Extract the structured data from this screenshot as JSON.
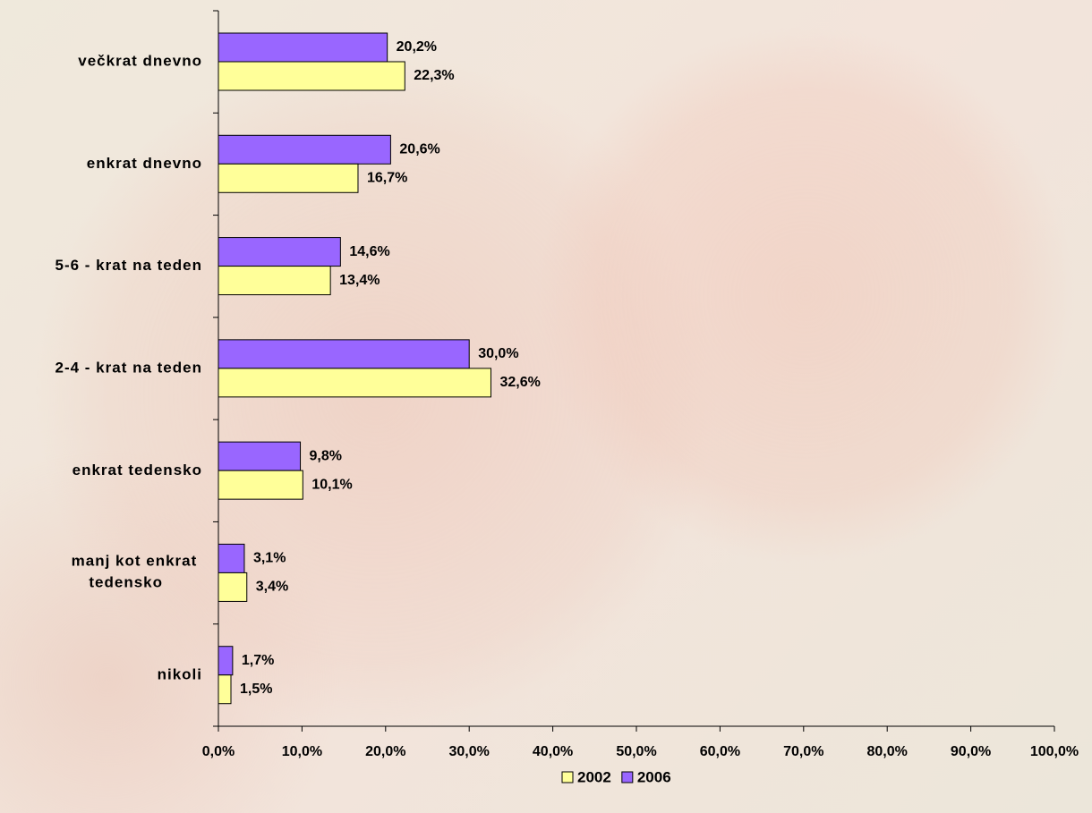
{
  "chart_data": {
    "type": "hbar",
    "categories": [
      "večkrat dnevno",
      "enkrat dnevno",
      "5-6 - krat na teden",
      "2-4 - krat na teden",
      "enkrat tedensko",
      "manj kot enkrat tedensko",
      "nikoli"
    ],
    "series": [
      {
        "name": "2002",
        "color": "#ffff99",
        "values": [
          22.3,
          16.7,
          13.4,
          32.6,
          10.1,
          3.4,
          1.5
        ],
        "value_labels": [
          "22,3%",
          "16,7%",
          "13,4%",
          "32,6%",
          "10,1%",
          "3,4%",
          "1,5%"
        ]
      },
      {
        "name": "2006",
        "color": "#9966ff",
        "values": [
          20.2,
          20.6,
          14.6,
          30.0,
          9.8,
          3.1,
          1.7
        ],
        "value_labels": [
          "20,2%",
          "20,6%",
          "14,6%",
          "30,0%",
          "9,8%",
          "3,1%",
          "1,7%"
        ]
      }
    ],
    "xlim": [
      0,
      100
    ],
    "xticks": [
      {
        "value": 0,
        "label": "0,0%"
      },
      {
        "value": 10,
        "label": "10,0%"
      },
      {
        "value": 20,
        "label": "20,0%"
      },
      {
        "value": 30,
        "label": "30,0%"
      },
      {
        "value": 40,
        "label": "40,0%"
      },
      {
        "value": 50,
        "label": "50,0%"
      },
      {
        "value": 60,
        "label": "60,0%"
      },
      {
        "value": 70,
        "label": "70,0%"
      },
      {
        "value": 80,
        "label": "80,0%"
      },
      {
        "value": 90,
        "label": "90,0%"
      },
      {
        "value": 100,
        "label": "100,0%"
      }
    ],
    "legend": "bottom"
  }
}
